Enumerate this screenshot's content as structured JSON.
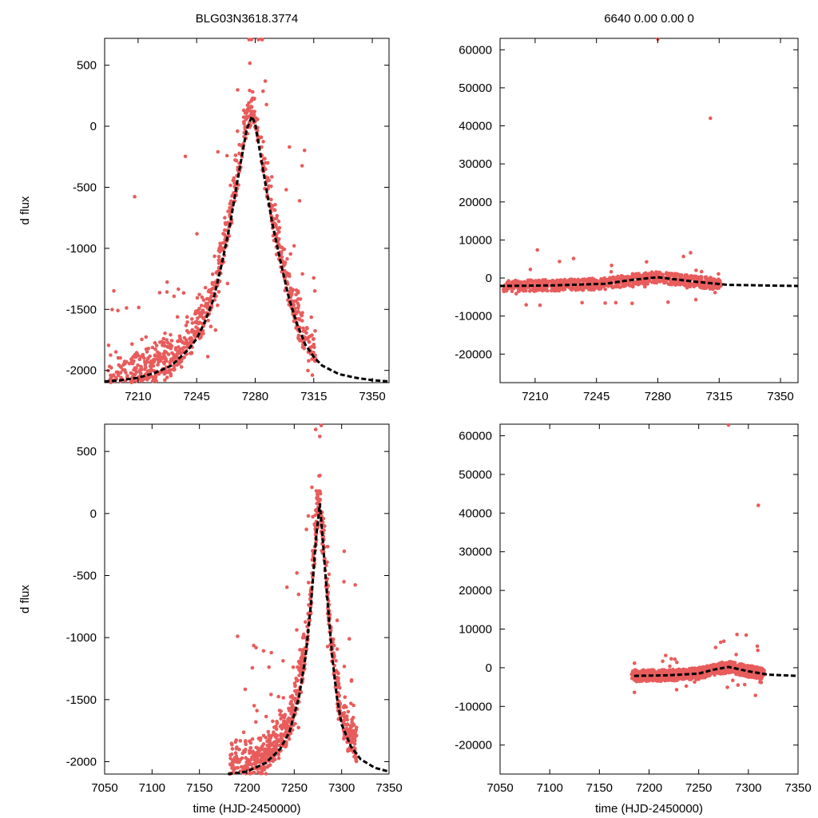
{
  "chart_data": [
    {
      "type": "scatter",
      "title": "BLG03N3618.3774",
      "xlabel": "",
      "ylabel": "d flux",
      "xlim": [
        7190,
        7360
      ],
      "ylim": [
        -2100,
        720
      ],
      "xticks": [
        7210,
        7245,
        7280,
        7315,
        7350
      ],
      "yticks": [
        -2000,
        -1500,
        -1000,
        -500,
        0,
        500
      ],
      "series": [
        {
          "name": "photometry",
          "kind": "points",
          "color": "#e85c5c"
        },
        {
          "name": "model",
          "kind": "dashed-line",
          "color": "#000000",
          "x": [
            7190,
            7200,
            7210,
            7220,
            7230,
            7240,
            7245,
            7250,
            7255,
            7260,
            7265,
            7270,
            7275,
            7278,
            7280,
            7285,
            7290,
            7295,
            7300,
            7305,
            7310,
            7315,
            7320,
            7330,
            7340,
            7350,
            7360
          ],
          "y": [
            -2090,
            -2080,
            -2060,
            -2020,
            -1960,
            -1830,
            -1740,
            -1600,
            -1420,
            -1130,
            -800,
            -400,
            -20,
            80,
            20,
            -380,
            -780,
            -1100,
            -1400,
            -1620,
            -1790,
            -1890,
            -1960,
            -2030,
            -2060,
            -2080,
            -2090
          ]
        }
      ]
    },
    {
      "type": "scatter",
      "title": "6640   0.00   0.00   0",
      "xlabel": "",
      "ylabel": "",
      "xlim": [
        7190,
        7360
      ],
      "ylim": [
        -27500,
        63000
      ],
      "xticks": [
        7210,
        7245,
        7280,
        7315,
        7350
      ],
      "yticks": [
        -20000,
        -10000,
        0,
        10000,
        20000,
        30000,
        40000,
        50000,
        60000
      ],
      "series": [
        {
          "name": "photometry",
          "kind": "points",
          "color": "#e85c5c"
        },
        {
          "name": "model",
          "kind": "dashed-line",
          "color": "#000000",
          "x": [
            7190,
            7220,
            7250,
            7265,
            7280,
            7300,
            7320,
            7360
          ],
          "y": [
            -2100,
            -1950,
            -1500,
            -500,
            200,
            -900,
            -1800,
            -2100
          ]
        }
      ]
    },
    {
      "type": "scatter",
      "title": "",
      "xlabel": "time (HJD-2450000)",
      "ylabel": "d flux",
      "xlim": [
        7050,
        7350
      ],
      "ylim": [
        -2100,
        720
      ],
      "xticks": [
        7050,
        7100,
        7150,
        7200,
        7250,
        7300,
        7350
      ],
      "yticks": [
        -2000,
        -1500,
        -1000,
        -500,
        0,
        500
      ],
      "series": [
        {
          "name": "photometry",
          "kind": "points",
          "color": "#e85c5c"
        },
        {
          "name": "model",
          "kind": "dashed-line",
          "color": "#000000",
          "x": [
            7180,
            7200,
            7220,
            7235,
            7245,
            7255,
            7262,
            7268,
            7273,
            7277,
            7280,
            7285,
            7290,
            7295,
            7300,
            7310,
            7320,
            7335,
            7350
          ],
          "y": [
            -2100,
            -2080,
            -2010,
            -1900,
            -1760,
            -1480,
            -1150,
            -700,
            -200,
            80,
            -200,
            -700,
            -1150,
            -1480,
            -1700,
            -1880,
            -1980,
            -2050,
            -2080
          ]
        }
      ]
    },
    {
      "type": "scatter",
      "title": "",
      "xlabel": "time (HJD-2450000)",
      "ylabel": "",
      "xlim": [
        7050,
        7350
      ],
      "ylim": [
        -27500,
        63000
      ],
      "xticks": [
        7050,
        7100,
        7150,
        7200,
        7250,
        7300,
        7350
      ],
      "yticks": [
        -20000,
        -10000,
        0,
        10000,
        20000,
        30000,
        40000,
        50000,
        60000
      ],
      "series": [
        {
          "name": "photometry",
          "kind": "points",
          "color": "#e85c5c"
        },
        {
          "name": "model",
          "kind": "dashed-line",
          "color": "#000000",
          "x": [
            7185,
            7220,
            7250,
            7265,
            7280,
            7300,
            7320,
            7350
          ],
          "y": [
            -2100,
            -1950,
            -1500,
            -500,
            200,
            -900,
            -1800,
            -2100
          ]
        }
      ]
    }
  ]
}
